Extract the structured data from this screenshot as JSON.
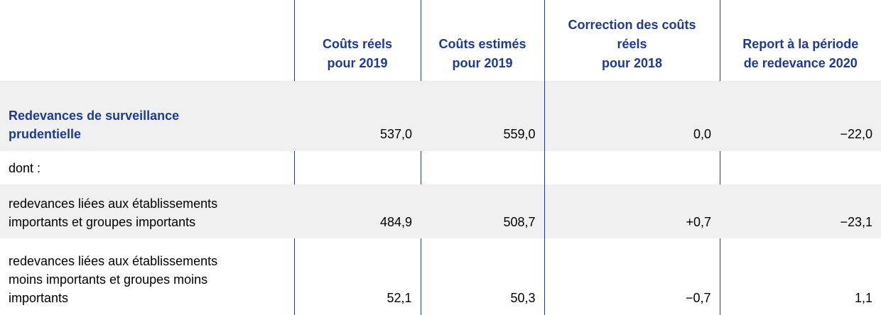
{
  "table": {
    "headers": [
      "",
      "Coûts réels pour 2019",
      "Coûts estimés pour 2019",
      "Correction des coûts réels pour 2018",
      "Report à la période de redevance 2020"
    ],
    "header_lines": {
      "actual_2019": [
        "Coûts réels",
        "pour 2019"
      ],
      "estimated_2019": [
        "Coûts estimés",
        "pour 2019"
      ],
      "correction_2018": [
        "Correction des coûts",
        "réels",
        "pour 2018"
      ],
      "carry_2020": [
        "Report à la période",
        "de redevance 2020"
      ]
    },
    "rows": [
      {
        "label_lines": [
          "Redevances de surveillance",
          "prudentielle"
        ],
        "values": [
          "537,0",
          "559,0",
          "0,0",
          "−22,0"
        ]
      },
      {
        "label_lines": [
          "dont :"
        ],
        "values": [
          "",
          "",
          "",
          ""
        ]
      },
      {
        "label_lines": [
          "redevances liées aux établissements",
          "importants et groupes importants"
        ],
        "values": [
          "484,9",
          "508,7",
          "+0,7",
          "−23,1"
        ]
      },
      {
        "label_lines": [
          "redevances liées aux établissements",
          "moins importants et groupes moins",
          "importants"
        ],
        "values": [
          "52,1",
          "50,3",
          "−0,7",
          "1,1"
        ]
      }
    ]
  },
  "colors": {
    "heading": "#1f3a93",
    "shade": "#f0f0f0",
    "divider": "#1f3a93"
  }
}
